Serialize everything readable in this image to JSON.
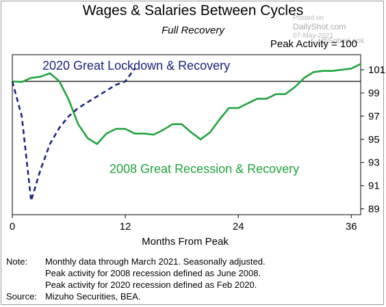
{
  "title": "Wages & Salaries Between Cycles",
  "subtitle": "Full Recovery",
  "peak_label": "Peak Activity = 100",
  "watermark": {
    "posted_on": "Posted on",
    "site": "DailyShot.com",
    "date": "07-May-2021",
    "handle": "@SoberLook"
  },
  "notes": {
    "note_label": "Note:",
    "note_lines": [
      "Monthly data through March 2021. Seasonally adjusted.",
      "Peak activity for 2008 recession defined as June 2008.",
      "Peak activity for 2020 recession defined as Feb 2020."
    ],
    "source_label": "Source:",
    "source_text": "Mizuho Securities, BEA."
  },
  "colors": {
    "series_2008": "#1fa33c",
    "series_2020": "#1a237e",
    "reference_line": "#000000"
  },
  "chart_data": {
    "type": "line",
    "title": "Wages & Salaries Between Cycles",
    "subtitle": "Full Recovery",
    "xlabel": "Months From Peak",
    "ylabel": "",
    "xlim": [
      0,
      37
    ],
    "ylim": [
      88.5,
      102.3
    ],
    "xticks": [
      0,
      12,
      24,
      36
    ],
    "yticks": [
      89,
      91,
      93,
      95,
      97,
      99,
      101
    ],
    "reference_line": 100,
    "y_axis_side": "right",
    "series": [
      {
        "name": "2008 Great Recession & Recovery",
        "style": "solid",
        "x": [
          0,
          1,
          2,
          3,
          4,
          5,
          6,
          7,
          8,
          9,
          10,
          11,
          12,
          13,
          14,
          15,
          16,
          17,
          18,
          19,
          20,
          21,
          22,
          23,
          24,
          25,
          26,
          27,
          28,
          29,
          30,
          31,
          32,
          33,
          34,
          35,
          36,
          37
        ],
        "values": [
          100.0,
          99.95,
          100.3,
          100.4,
          100.7,
          100.0,
          98.4,
          96.3,
          95.1,
          94.6,
          95.5,
          95.9,
          95.9,
          95.5,
          95.5,
          95.4,
          95.8,
          96.3,
          96.3,
          95.6,
          95.0,
          95.6,
          96.7,
          97.7,
          97.7,
          98.1,
          98.5,
          98.5,
          98.9,
          98.9,
          99.5,
          100.3,
          100.8,
          100.9,
          100.9,
          101.0,
          101.1,
          101.5
        ]
      },
      {
        "name": "2020 Great Lockdown & Recovery",
        "style": "dashed",
        "x": [
          0,
          1,
          2,
          3,
          4,
          5,
          6,
          7,
          8,
          9,
          10,
          11,
          12,
          13
        ],
        "values": [
          100.0,
          97.0,
          89.7,
          92.4,
          94.6,
          96.0,
          97.0,
          97.7,
          98.2,
          98.7,
          99.2,
          99.7,
          100.0,
          101.1
        ]
      }
    ]
  }
}
